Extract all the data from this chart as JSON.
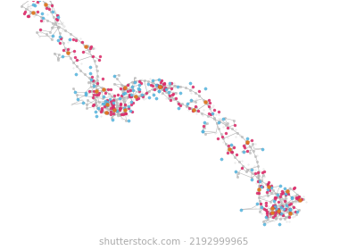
{
  "background_color": "#ffffff",
  "watermark_text": "shutterstock.com · 2192999965",
  "watermark_fontsize": 7.5,
  "watermark_color": "#aaaaaa",
  "atom_colors": {
    "C": "#c0c0c0",
    "N": "#5ab8e0",
    "O": "#e03070",
    "P": "#e07820",
    "H": "#e8e8e8"
  },
  "bond_color": "#999999",
  "figsize": [
    3.9,
    2.8
  ],
  "dpi": 100
}
